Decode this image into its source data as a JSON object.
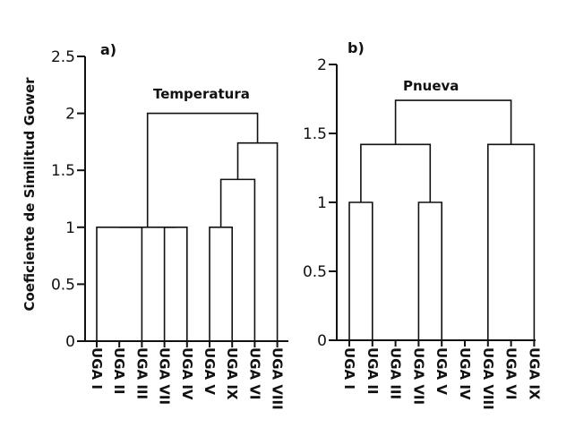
{
  "chart_data": [
    {
      "type": "dendrogram",
      "panel_label": "a)",
      "title": "Temperatura",
      "ylabel": "Coeficiente de Similitud Gower",
      "ylim": [
        0,
        2.5
      ],
      "yticks": [
        0,
        0.5,
        1,
        1.5,
        2,
        2.5
      ],
      "ytick_labels": [
        "0",
        "0.5",
        "1",
        "1.5",
        "2",
        "2.5"
      ],
      "leaves": [
        "UGA I",
        "UGA II",
        "UGA III",
        "UGA VII",
        "UGA IV",
        "UGA V",
        "UGA IX",
        "UGA VI",
        "UGA VIII"
      ],
      "merges": [
        {
          "left": 0,
          "right": 2,
          "height": 1
        },
        {
          "left": 3,
          "right": 4,
          "height": 1
        },
        {
          "left": 5,
          "right": 6,
          "height": 1
        },
        {
          "left": 11,
          "right": 7,
          "height": 1.42
        },
        {
          "left": 12,
          "right": 8,
          "height": 1.74
        },
        {
          "left": 9,
          "right": 10,
          "height": 1
        },
        {
          "left": 14,
          "right": 13,
          "height": 2
        }
      ]
    },
    {
      "type": "dendrogram",
      "panel_label": "b)",
      "title": "Pnueva",
      "ylabel": "",
      "ylim": [
        0,
        2
      ],
      "yticks": [
        0,
        0.5,
        1,
        1.5,
        2
      ],
      "ytick_labels": [
        "0",
        "0.5",
        "1",
        "1.5",
        "2"
      ],
      "leaves": [
        "UGA I",
        "UGA II",
        "UGA III",
        "UGA VII",
        "UGA V",
        "UGA IV",
        "UGA VIII",
        "UGA VI",
        "UGA IX"
      ],
      "merges": [
        {
          "left": 0,
          "right": 1,
          "height": 1
        },
        {
          "left": 3,
          "right": 4,
          "height": 1
        },
        {
          "left": 6,
          "right": 8,
          "height": 1.42
        },
        {
          "left": 9,
          "right": 10,
          "height": 1.42
        },
        {
          "left": 12,
          "right": 11,
          "height": 1.74
        }
      ]
    }
  ]
}
